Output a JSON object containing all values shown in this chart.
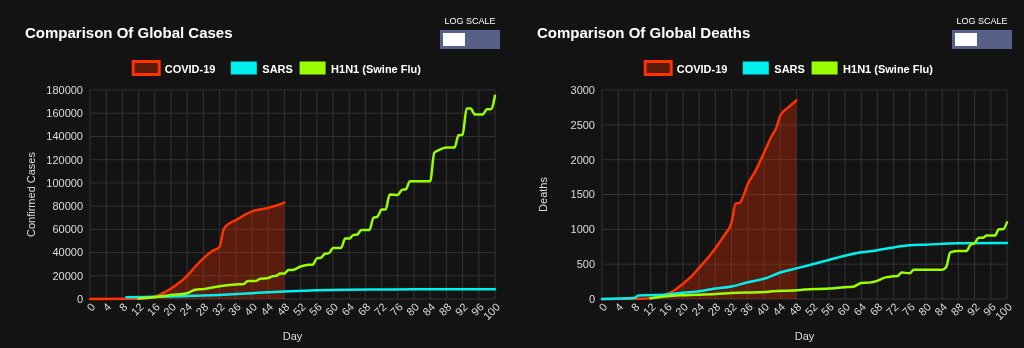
{
  "chart_data": [
    {
      "type": "line",
      "title": "Comparison Of Global Cases",
      "xlabel": "Day",
      "ylabel": "Confirmed Cases",
      "annotations": [
        "LOG SCALE"
      ],
      "xlim": [
        0,
        100
      ],
      "xticks": [
        0,
        4,
        8,
        12,
        16,
        20,
        24,
        28,
        32,
        36,
        40,
        44,
        48,
        52,
        56,
        60,
        64,
        68,
        72,
        76,
        80,
        84,
        88,
        92,
        96,
        100
      ],
      "ylim": [
        0,
        180000
      ],
      "yticks": [
        0,
        20000,
        40000,
        60000,
        80000,
        100000,
        120000,
        140000,
        160000,
        180000
      ],
      "grid": true,
      "legend": "top",
      "series": [
        {
          "name": "COVID-19",
          "type": "area",
          "color": "#ff3300",
          "x": [
            0,
            12,
            16,
            18,
            20,
            22,
            24,
            26,
            28,
            30,
            32,
            33,
            34,
            36,
            38,
            40,
            42,
            44,
            46,
            48
          ],
          "values": [
            0,
            300,
            2000,
            5000,
            9000,
            14000,
            20000,
            28000,
            35000,
            41000,
            45000,
            60000,
            64000,
            68000,
            72000,
            75500,
            77000,
            78500,
            80500,
            83000
          ]
        },
        {
          "name": "SARS",
          "color": "#00f0f0",
          "x": [
            9,
            16,
            24,
            32,
            40,
            48,
            56,
            64,
            72,
            80,
            100
          ],
          "values": [
            1500,
            null,
            2500,
            3500,
            5000,
            6500,
            7500,
            8000,
            8200,
            8400,
            8500
          ]
        },
        {
          "name": "H1N1 (Swine Flu)",
          "color": "#99ff00",
          "x": [
            12,
            16,
            20,
            24,
            26,
            28,
            32,
            36,
            38,
            39,
            41,
            42,
            44,
            45,
            46,
            47,
            48,
            49,
            50,
            52,
            54,
            55,
            56,
            57,
            58,
            59,
            60,
            62,
            63,
            64,
            65,
            66,
            67,
            69,
            70,
            71,
            72,
            73,
            74,
            76,
            77,
            78,
            79,
            84,
            85,
            86,
            88,
            90,
            91,
            92,
            93,
            94,
            95,
            97,
            98,
            99,
            100
          ],
          "values": [
            500,
            1500,
            3500,
            5000,
            8000,
            8500,
            11000,
            12500,
            13000,
            15500,
            15500,
            17500,
            18000,
            19500,
            20000,
            22000,
            22000,
            25000,
            25000,
            28000,
            29500,
            29500,
            35000,
            35500,
            39000,
            39500,
            44000,
            44000,
            52000,
            52000,
            55000,
            55500,
            59500,
            59500,
            70000,
            71000,
            77000,
            77000,
            90000,
            89500,
            94000,
            94500,
            101500,
            101500,
            126000,
            128000,
            130500,
            130500,
            141000,
            141500,
            164000,
            164000,
            159000,
            159000,
            163500,
            163500,
            175000
          ]
        }
      ]
    },
    {
      "type": "line",
      "title": "Comparison Of Global Deaths",
      "xlabel": "Day",
      "ylabel": "Deaths",
      "annotations": [
        "LOG SCALE"
      ],
      "xlim": [
        0,
        100
      ],
      "xticks": [
        0,
        4,
        8,
        12,
        16,
        20,
        24,
        28,
        32,
        36,
        40,
        44,
        48,
        52,
        56,
        60,
        64,
        68,
        72,
        76,
        80,
        84,
        88,
        92,
        96,
        100
      ],
      "ylim": [
        0,
        3000
      ],
      "yticks": [
        0,
        500,
        1000,
        1500,
        2000,
        2500,
        3000
      ],
      "grid": true,
      "legend": "top",
      "series": [
        {
          "name": "COVID-19",
          "type": "area",
          "color": "#ff3300",
          "x": [
            0,
            10,
            14,
            16,
            18,
            20,
            22,
            24,
            26,
            28,
            30,
            32,
            33,
            34,
            36,
            38,
            40,
            42,
            43,
            44,
            46,
            48
          ],
          "values": [
            0,
            5,
            30,
            70,
            130,
            220,
            320,
            450,
            580,
            730,
            900,
            1100,
            1370,
            1380,
            1650,
            1850,
            2100,
            2350,
            2450,
            2630,
            2750,
            2850
          ]
        },
        {
          "name": "SARS",
          "color": "#00f0f0",
          "x": [
            0,
            8,
            9,
            12,
            16,
            20,
            24,
            28,
            32,
            36,
            40,
            44,
            48,
            52,
            56,
            60,
            64,
            68,
            72,
            76,
            80,
            88,
            100
          ],
          "values": [
            0,
            15,
            50,
            55,
            65,
            90,
            110,
            150,
            180,
            240,
            290,
            380,
            440,
            500,
            560,
            620,
            670,
            700,
            740,
            770,
            780,
            800,
            805
          ]
        },
        {
          "name": "H1N1 (Swine Flu)",
          "color": "#99ff00",
          "x": [
            12,
            16,
            20,
            28,
            32,
            40,
            42,
            48,
            50,
            56,
            60,
            62,
            64,
            66,
            68,
            70,
            72,
            73,
            74,
            76,
            77,
            84,
            85,
            86,
            88,
            90,
            91,
            92,
            93,
            94,
            95,
            97,
            98,
            99,
            100
          ],
          "values": [
            10,
            40,
            55,
            70,
            85,
            100,
            110,
            125,
            135,
            150,
            170,
            175,
            230,
            235,
            260,
            310,
            325,
            330,
            380,
            370,
            420,
            420,
            460,
            670,
            690,
            690,
            780,
            800,
            880,
            880,
            910,
            910,
            1000,
            1000,
            1100
          ]
        }
      ]
    }
  ]
}
